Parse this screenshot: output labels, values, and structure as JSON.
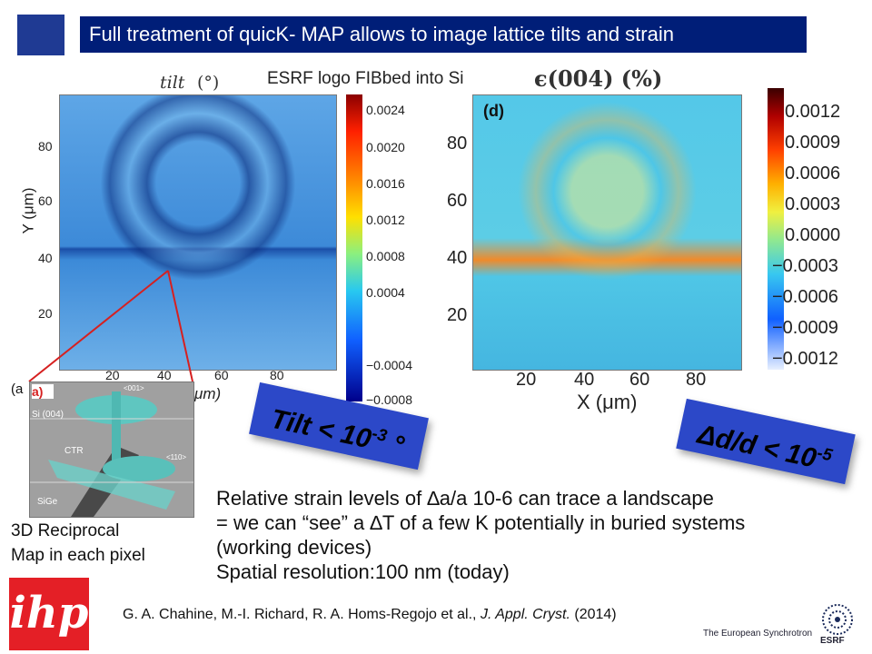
{
  "title": "Full treatment of quicK- MAP allows to image lattice tilts and strain",
  "esrf_note": "ESRF logo FIBbed into Si",
  "tilt_map": {
    "title": "tilt",
    "unit": "(°)",
    "y_axis_label": "Y (μm)",
    "x_axis_label": "μm)",
    "y_ticks": [
      "80",
      "60",
      "40",
      "20"
    ],
    "x_ticks": [
      "20",
      "40",
      "60",
      "80"
    ],
    "colorbar_ticks": [
      "0.0024",
      "0.0020",
      "0.0016",
      "0.0012",
      "0.0008",
      "0.0004",
      "−0.0004",
      "−0.0008"
    ]
  },
  "strain_map": {
    "title": "ϵ(004) (%)",
    "panel_label": "(d)",
    "y_ticks": [
      "80",
      "60",
      "40",
      "20"
    ],
    "x_ticks": [
      "20",
      "40",
      "60",
      "80"
    ],
    "x_axis_label": "X (μm)",
    "colorbar_ticks": [
      "0.0012",
      "0.0009",
      "0.0006",
      "0.0003",
      "0.0000",
      "−0.0003",
      "−0.0006",
      "−0.0009",
      "−0.0012"
    ]
  },
  "inset": {
    "outer_label": "(a",
    "panel_label": "a)",
    "labels": [
      "Si (004)",
      "CTR",
      "SiGe",
      "<001>",
      "<110>"
    ]
  },
  "reciprocal_caption": [
    "3D Reciprocal",
    "Map in each pixel"
  ],
  "tilt_box": {
    "text": "Tilt < 10",
    "exponent": "-3",
    "unit": " °"
  },
  "strain_box": {
    "text": "Δd/d < 10",
    "exponent": "-5"
  },
  "body_lines": [
    "Relative strain levels of ∆a/a 10-6 can trace a landscape",
    "= we can “see” a ∆T of a few K potentially in buried systems",
    "(working devices)",
    "Spatial resolution:100 nm (today)"
  ],
  "reference": {
    "authors": "G. A. Chahine, M.-I. Richard, R. A. Homs-Regojo et al., ",
    "journal": "J. Appl. Cryst.",
    "year": " (2014)"
  },
  "logos": {
    "ihp": "ihp",
    "esrf_tagline": "The European Synchrotron",
    "esrf_name": "ESRF"
  }
}
